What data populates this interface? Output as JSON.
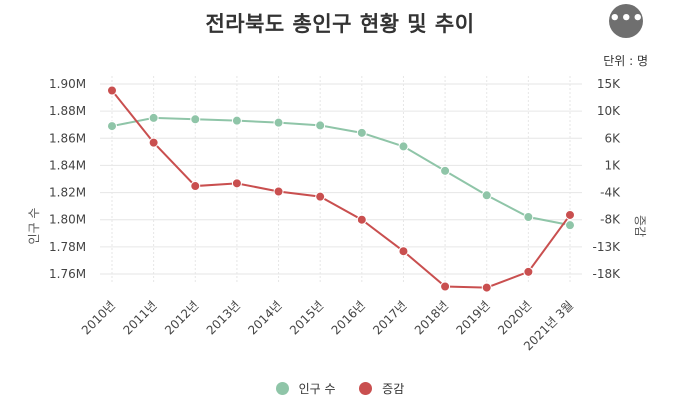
{
  "title": "전라북도 총인구 현황 및 추이",
  "menu_icon": "more-horizontal-icon",
  "unit": "단위 : 명",
  "legend": [
    {
      "name": "인구 수",
      "color": "#8fc5a8"
    },
    {
      "name": "증감",
      "color": "#c94f4f"
    }
  ],
  "chart_data": {
    "type": "line",
    "categories": [
      "2010년",
      "2011년",
      "2012년",
      "2013년",
      "2014년",
      "2015년",
      "2016년",
      "2017년",
      "2018년",
      "2019년",
      "2020년",
      "2021년 3월"
    ],
    "series": [
      {
        "name": "인구 수",
        "axis": "left",
        "color": "#8fc5a8",
        "values": [
          1869000,
          1875000,
          1874000,
          1873000,
          1871500,
          1869500,
          1864000,
          1854000,
          1836000,
          1818000,
          1802000,
          1796000
        ]
      },
      {
        "name": "증감",
        "axis": "right",
        "color": "#c94f4f",
        "values": [
          13800,
          5200,
          -2800,
          -2300,
          -3800,
          -4600,
          -8000,
          -13800,
          -20300,
          -20500,
          -17600,
          -7300
        ]
      }
    ],
    "y_left": {
      "label": "인구 수",
      "ticks": [
        1760000,
        1780000,
        1800000,
        1820000,
        1840000,
        1860000,
        1880000,
        1900000
      ],
      "tick_labels": [
        "1.76M",
        "1.78M",
        "1.80M",
        "1.82M",
        "1.84M",
        "1.86M",
        "1.88M",
        "1.90M"
      ]
    },
    "y_right": {
      "label": "증감",
      "ticks": [
        -18000,
        -13000,
        -8000,
        -4000,
        1000,
        6000,
        10000,
        15000
      ],
      "tick_labels": [
        "-18K",
        "-13K",
        "-8K",
        "-4K",
        "1K",
        "6K",
        "10K",
        "15K"
      ]
    },
    "grid": true
  }
}
